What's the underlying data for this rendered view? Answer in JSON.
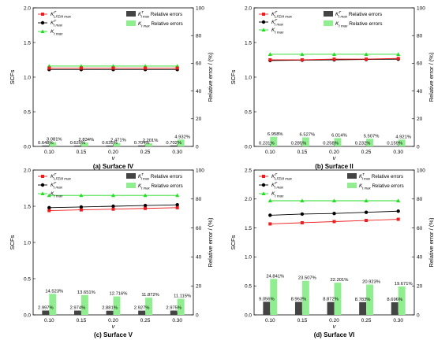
{
  "colors": {
    "fem": "#ee1c1c",
    "kt1": "#000000",
    "kt": "#22dd22",
    "bar_dark": "#444444",
    "bar_light": "#90ee90"
  },
  "axis_text": {
    "y_left": "SCFs",
    "y_right": "Relative error / (%)",
    "x": "v"
  },
  "legend_text": {
    "fem_main": "K",
    "fem_sup": "T",
    "fem_sub": "t,FEM max",
    "kt1_main": "K",
    "kt1_sup": "T",
    "kt1_sub": "t max",
    "kt_main": "K",
    "kt_sub": "t max",
    "dark_bar_main": "K",
    "dark_bar_sup": "T",
    "dark_bar_sub": "t max",
    "dark_bar_suffix": " Relative errors",
    "light_bar_main": "K",
    "light_bar_sub": "t max",
    "light_bar_suffix": " Relative errors"
  },
  "chart_data": [
    {
      "type": "bar+line",
      "title": "(a) Surface IV",
      "categories": [
        "0.10",
        "0.15",
        "0.20",
        "0.25",
        "0.30"
      ],
      "ylim_left": [
        0,
        2.0
      ],
      "yticks_left": [
        "0.0",
        "0.5",
        "1.0",
        "1.5",
        "2.0"
      ],
      "ylim_right": [
        0,
        100
      ],
      "yticks_right": [
        "0",
        "20",
        "40",
        "60",
        "80",
        "100"
      ],
      "lines": {
        "fem": [
          1.13,
          1.13,
          1.13,
          1.13,
          1.13
        ],
        "kt1": [
          1.11,
          1.11,
          1.11,
          1.11,
          1.11
        ],
        "kt": [
          1.16,
          1.16,
          1.16,
          1.16,
          1.16
        ]
      },
      "bars_dark": [
        0.648,
        0.62,
        0.635,
        0.704,
        0.702
      ],
      "bars_light": [
        3.081,
        2.834,
        2.471,
        2.201,
        4.932
      ],
      "labels_dark": [
        "0.648%",
        "0.620%",
        "0.635%",
        "0.704%",
        "0.702%"
      ],
      "labels_light": [
        "3.081%",
        "2.834%",
        "2.471%",
        "2.201%",
        "4.932%"
      ]
    },
    {
      "type": "bar+line",
      "title": "(b) Surface II",
      "categories": [
        "0.10",
        "0.15",
        "0.20",
        "0.25",
        "0.30"
      ],
      "ylim_left": [
        0,
        2.0
      ],
      "yticks_left": [
        "0.0",
        "0.5",
        "1.0",
        "1.5",
        "2.0"
      ],
      "ylim_right": [
        0,
        100
      ],
      "yticks_right": [
        "0",
        "20",
        "40",
        "60",
        "80",
        "100"
      ],
      "lines": {
        "fem": [
          1.25,
          1.25,
          1.26,
          1.26,
          1.27
        ],
        "kt1": [
          1.24,
          1.245,
          1.25,
          1.255,
          1.26
        ],
        "kt": [
          1.33,
          1.33,
          1.33,
          1.33,
          1.33
        ]
      },
      "bars_dark": [
        0.231,
        0.285,
        0.258,
        0.232,
        0.159
      ],
      "bars_light": [
        6.958,
        6.527,
        6.014,
        5.507,
        4.921
      ],
      "labels_dark": [
        "0.231%",
        "0.285%",
        "0.258%",
        "0.232%",
        "0.159%"
      ],
      "labels_light": [
        "6.958%",
        "6.527%",
        "6.014%",
        "5.507%",
        "4.921%"
      ]
    },
    {
      "type": "bar+line",
      "title": "(c) Surface V",
      "categories": [
        "0.10",
        "0.15",
        "0.20",
        "0.25",
        "0.30"
      ],
      "ylim_left": [
        0,
        2.0
      ],
      "yticks_left": [
        "0.0",
        "0.5",
        "1.0",
        "1.5",
        "2.0"
      ],
      "ylim_right": [
        0,
        100
      ],
      "yticks_right": [
        "0",
        "20",
        "40",
        "60",
        "80",
        "100"
      ],
      "lines": {
        "fem": [
          1.44,
          1.45,
          1.46,
          1.47,
          1.48
        ],
        "kt1": [
          1.48,
          1.49,
          1.5,
          1.51,
          1.52
        ],
        "kt": [
          1.65,
          1.65,
          1.65,
          1.65,
          1.65
        ]
      },
      "bars_dark": [
        2.997,
        2.974,
        2.881,
        2.927,
        2.975
      ],
      "bars_light": [
        14.523,
        13.651,
        12.716,
        11.872,
        11.115
      ],
      "labels_dark": [
        "2.997%",
        "2.974%",
        "2.881%",
        "2.927%",
        "2.975%"
      ],
      "labels_light": [
        "14.523%",
        "13.651%",
        "12.716%",
        "11.872%",
        "11.115%"
      ]
    },
    {
      "type": "bar+line",
      "title": "(d) Surface VI",
      "categories": [
        "0.10",
        "0.15",
        "0.20",
        "0.25",
        "0.30"
      ],
      "ylim_left": [
        0,
        2.5
      ],
      "yticks_left": [
        "0.0",
        "0.5",
        "1.0",
        "1.5",
        "2.0",
        "2.5"
      ],
      "ylim_right": [
        0,
        100
      ],
      "yticks_right": [
        "0",
        "20",
        "40",
        "60",
        "80",
        "100"
      ],
      "lines": {
        "fem": [
          1.57,
          1.59,
          1.61,
          1.63,
          1.65
        ],
        "kt1": [
          1.72,
          1.74,
          1.75,
          1.77,
          1.79
        ],
        "kt": [
          1.97,
          1.97,
          1.97,
          1.97,
          1.97
        ]
      },
      "bars_dark": [
        9.056,
        8.963,
        8.872,
        8.783,
        8.696
      ],
      "bars_light": [
        24.841,
        23.507,
        22.201,
        20.923,
        19.671
      ],
      "labels_dark": [
        "9.056%",
        "8.963%",
        "8.872%",
        "8.783%",
        "8.696%"
      ],
      "labels_light": [
        "24.841%",
        "23.507%",
        "22.201%",
        "20.923%",
        "19.671%"
      ]
    }
  ]
}
